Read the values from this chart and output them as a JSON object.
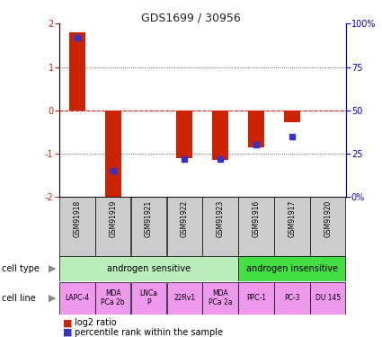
{
  "title": "GDS1699 / 30956",
  "samples": [
    "GSM91918",
    "GSM91919",
    "GSM91921",
    "GSM91922",
    "GSM91923",
    "GSM91916",
    "GSM91917",
    "GSM91920"
  ],
  "log2_ratio": [
    1.8,
    -2.05,
    0.0,
    -1.1,
    -1.15,
    -0.85,
    -0.28,
    0.0
  ],
  "percentile_rank": [
    92,
    15,
    null,
    22,
    22,
    30,
    35,
    null
  ],
  "ylim": [
    -2,
    2
  ],
  "right_ylim": [
    0,
    100
  ],
  "bar_color": "#cc2200",
  "square_color": "#3333cc",
  "dotted_line_color": "#cc0000",
  "cell_type_groups": [
    {
      "label": "androgen sensitive",
      "start": 0,
      "end": 4,
      "color": "#bbeebb"
    },
    {
      "label": "androgen insensitive",
      "start": 5,
      "end": 7,
      "color": "#44dd44"
    }
  ],
  "cell_lines": [
    {
      "label": "LAPC-4",
      "start": 0,
      "end": 0,
      "color": "#ee99ee"
    },
    {
      "label": "MDA\nPCa 2b",
      "start": 1,
      "end": 1,
      "color": "#ee99ee"
    },
    {
      "label": "LNCa\nP",
      "start": 2,
      "end": 2,
      "color": "#ee99ee"
    },
    {
      "label": "22Rv1",
      "start": 3,
      "end": 3,
      "color": "#ee99ee"
    },
    {
      "label": "MDA\nPCa 2a",
      "start": 4,
      "end": 4,
      "color": "#ee99ee"
    },
    {
      "label": "PPC-1",
      "start": 5,
      "end": 5,
      "color": "#ee99ee"
    },
    {
      "label": "PC-3",
      "start": 6,
      "end": 6,
      "color": "#ee99ee"
    },
    {
      "label": "DU 145",
      "start": 7,
      "end": 7,
      "color": "#ee99ee"
    }
  ],
  "legend_red_label": "log2 ratio",
  "legend_blue_label": "percentile rank within the sample",
  "cell_type_label": "cell type",
  "cell_line_label": "cell line",
  "sample_box_color": "#cccccc",
  "right_ytick_labels": [
    "0%",
    "25",
    "50",
    "75",
    "100%"
  ],
  "right_ytick_values": [
    0,
    25,
    50,
    75,
    100
  ],
  "left_ytick_labels": [
    "-2",
    "-1",
    "0",
    "1",
    "2"
  ],
  "left_ytick_values": [
    -2,
    -1,
    0,
    1,
    2
  ]
}
